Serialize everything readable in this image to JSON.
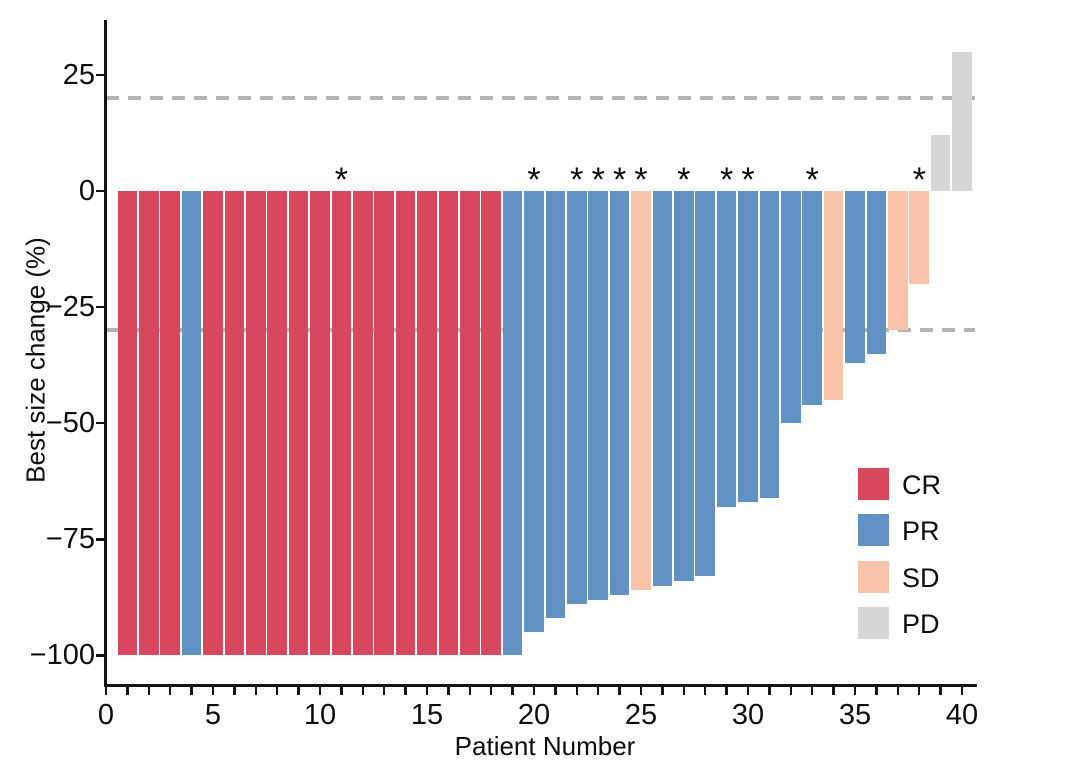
{
  "chart_data": {
    "type": "bar",
    "title": "",
    "xlabel": "Patient Number",
    "ylabel": "Best size change (%)",
    "x_ticks_labeled": [
      0,
      5,
      10,
      15,
      20,
      25,
      30,
      35,
      40
    ],
    "x_minor_tick_step": 1,
    "y_ticks": [
      25,
      0,
      -25,
      -50,
      -75,
      -100
    ],
    "xlim": [
      0,
      40.7
    ],
    "ylim": [
      -106,
      36.5
    ],
    "grid": "off",
    "reference_lines": [
      {
        "value": 20,
        "style": "dashed",
        "color": "#b4b4b4"
      },
      {
        "value": -30,
        "style": "dashed",
        "color": "#b4b4b4"
      }
    ],
    "annotation_symbol": "*",
    "legend": {
      "position": "right-lower",
      "entries": [
        {
          "label": "CR",
          "color": "#d9475f"
        },
        {
          "label": "PR",
          "color": "#6292c4"
        },
        {
          "label": "SD",
          "color": "#f8c3a8"
        },
        {
          "label": "PD",
          "color": "#d6d6d6"
        }
      ]
    },
    "patients": [
      {
        "patient": 1,
        "value": -100,
        "response": "CR",
        "star": false
      },
      {
        "patient": 2,
        "value": -100,
        "response": "CR",
        "star": false
      },
      {
        "patient": 3,
        "value": -100,
        "response": "CR",
        "star": false
      },
      {
        "patient": 4,
        "value": -100,
        "response": "PR",
        "star": false
      },
      {
        "patient": 5,
        "value": -100,
        "response": "CR",
        "star": false
      },
      {
        "patient": 6,
        "value": -100,
        "response": "CR",
        "star": false
      },
      {
        "patient": 7,
        "value": -100,
        "response": "CR",
        "star": false
      },
      {
        "patient": 8,
        "value": -100,
        "response": "CR",
        "star": false
      },
      {
        "patient": 9,
        "value": -100,
        "response": "CR",
        "star": false
      },
      {
        "patient": 10,
        "value": -100,
        "response": "CR",
        "star": false
      },
      {
        "patient": 11,
        "value": -100,
        "response": "CR",
        "star": true
      },
      {
        "patient": 12,
        "value": -100,
        "response": "CR",
        "star": false
      },
      {
        "patient": 13,
        "value": -100,
        "response": "CR",
        "star": false
      },
      {
        "patient": 14,
        "value": -100,
        "response": "CR",
        "star": false
      },
      {
        "patient": 15,
        "value": -100,
        "response": "CR",
        "star": false
      },
      {
        "patient": 16,
        "value": -100,
        "response": "CR",
        "star": false
      },
      {
        "patient": 17,
        "value": -100,
        "response": "CR",
        "star": false
      },
      {
        "patient": 18,
        "value": -100,
        "response": "CR",
        "star": false
      },
      {
        "patient": 19,
        "value": -100,
        "response": "PR",
        "star": false
      },
      {
        "patient": 20,
        "value": -95,
        "response": "PR",
        "star": true
      },
      {
        "patient": 21,
        "value": -92,
        "response": "PR",
        "star": false
      },
      {
        "patient": 22,
        "value": -89,
        "response": "PR",
        "star": true
      },
      {
        "patient": 23,
        "value": -88,
        "response": "PR",
        "star": true
      },
      {
        "patient": 24,
        "value": -87,
        "response": "PR",
        "star": true
      },
      {
        "patient": 25,
        "value": -86,
        "response": "SD",
        "star": true
      },
      {
        "patient": 26,
        "value": -85,
        "response": "PR",
        "star": false
      },
      {
        "patient": 27,
        "value": -84,
        "response": "PR",
        "star": true
      },
      {
        "patient": 28,
        "value": -83,
        "response": "PR",
        "star": false
      },
      {
        "patient": 29,
        "value": -68,
        "response": "PR",
        "star": true
      },
      {
        "patient": 30,
        "value": -67,
        "response": "PR",
        "star": true
      },
      {
        "patient": 31,
        "value": -66,
        "response": "PR",
        "star": false
      },
      {
        "patient": 32,
        "value": -50,
        "response": "PR",
        "star": false
      },
      {
        "patient": 33,
        "value": -46,
        "response": "PR",
        "star": true
      },
      {
        "patient": 34,
        "value": -45,
        "response": "SD",
        "star": false
      },
      {
        "patient": 35,
        "value": -37,
        "response": "PR",
        "star": false
      },
      {
        "patient": 36,
        "value": -35,
        "response": "PR",
        "star": false
      },
      {
        "patient": 37,
        "value": -30,
        "response": "SD",
        "star": false
      },
      {
        "patient": 38,
        "value": -20,
        "response": "SD",
        "star": true
      },
      {
        "patient": 39,
        "value": 12,
        "response": "PD",
        "star": false
      },
      {
        "patient": 40,
        "value": 30,
        "response": "PD",
        "star": false
      }
    ]
  },
  "colors": {
    "axis": "#141414",
    "text": "#0d0d0d",
    "background": "#ffffff",
    "reference_dash": "#b4b4b4"
  }
}
